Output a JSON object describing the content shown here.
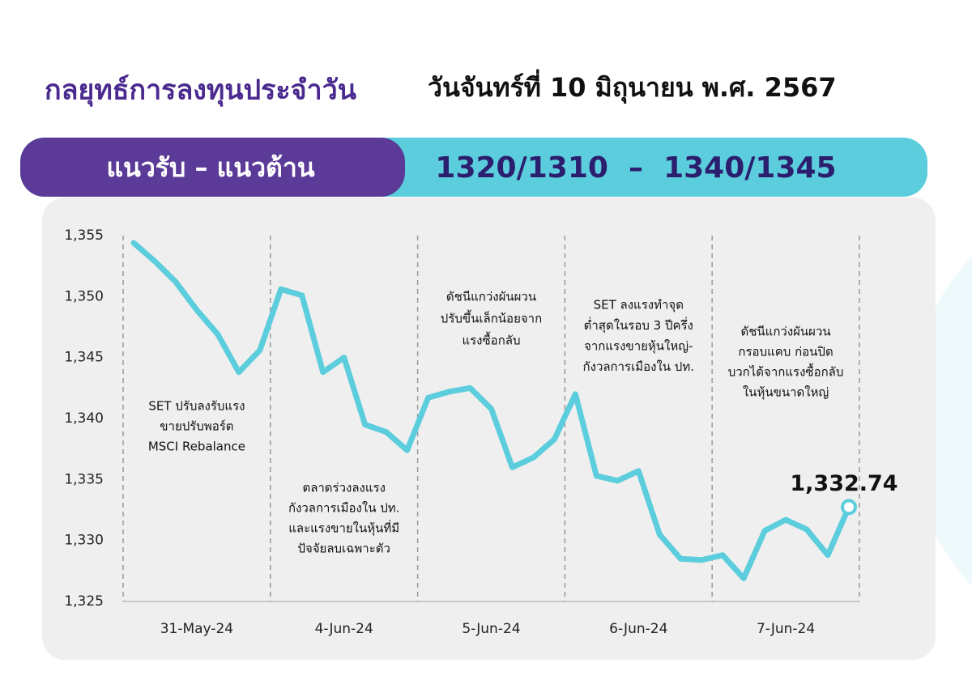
{
  "header": {
    "title": "กลยุทธ์การลงทุนประจำวัน",
    "date": "วันจันทร์ที่ 10 มิถุนายน พ.ศ. 2567",
    "levels_label": "แนวรับ – แนวต้าน",
    "levels_value": "1320/1310  –  1340/1345"
  },
  "chart_data": {
    "type": "line",
    "categories": [
      null,
      null,
      null,
      "31-May-24",
      null,
      null,
      null,
      null,
      null,
      null,
      "4-Jun-24",
      null,
      null,
      null,
      null,
      null,
      null,
      "5-Jun-24",
      null,
      null,
      null,
      null,
      null,
      null,
      "6-Jun-24",
      null,
      null,
      null,
      null,
      null,
      null,
      "7-Jun-24",
      null,
      null,
      null
    ],
    "series": [
      {
        "color": "#5bcddc",
        "values": [
          1354.4,
          1352.9,
          1351.2,
          1348.9,
          1346.9,
          1343.8,
          1345.6,
          1350.6,
          1350.1,
          1343.8,
          1345.0,
          1339.5,
          1338.9,
          1337.4,
          1341.7,
          1342.2,
          1342.5,
          1340.8,
          1336.0,
          1336.8,
          1338.3,
          1342.0,
          1335.3,
          1334.9,
          1335.7,
          1330.5,
          1328.5,
          1328.4,
          1328.8,
          1326.9,
          1330.8,
          1331.7,
          1330.9,
          1328.8,
          1332.74
        ],
        "value_labels": [
          null,
          null,
          null,
          null,
          null,
          null,
          null,
          null,
          null,
          null,
          null,
          null,
          null,
          null,
          null,
          null,
          null,
          null,
          null,
          null,
          null,
          null,
          null,
          null,
          null,
          null,
          null,
          null,
          null,
          null,
          null,
          null,
          null,
          null,
          "1,332.74"
        ]
      }
    ],
    "ylim": [
      1325,
      1355
    ],
    "yticks": [
      {
        "value": 1325,
        "label": "1,325"
      },
      {
        "value": 1330,
        "label": "1,330"
      },
      {
        "value": 1335,
        "label": "1,335"
      },
      {
        "value": 1340,
        "label": "1,340"
      },
      {
        "value": 1345,
        "label": "1,345"
      },
      {
        "value": 1350,
        "label": "1,350"
      },
      {
        "value": 1355,
        "label": "1,355"
      }
    ],
    "annotations": [
      {
        "lines": [
          "SET ปรับลงรับแรง",
          "ขายปรับพอร์ต",
          "MSCI Rebalance"
        ]
      },
      {
        "lines": [
          "ตลาดร่วงลงแรง",
          "กังวลการเมืองใน ปท.",
          "และแรงขายในหุ้นที่มี",
          "ปัจจัยลบเฉพาะตัว"
        ]
      },
      {
        "lines": [
          "ดัชนีแกว่งผันผวน",
          "ปรับขึ้นเล็กน้อยจาก",
          "แรงซื้อกลับ"
        ]
      },
      {
        "lines": [
          "SET ลงแรงทำจุด",
          "ต่ำสุดในรอบ 3 ปีครึ่ง",
          "จากแรงขายหุ้นใหญ่-",
          "กังวลการเมืองใน ปท."
        ]
      },
      {
        "lines": [
          "ดัชนีแกว่งผันผวน",
          "กรอบแคบ ก่อนปิด",
          "บวกได้จากแรงซื้อกลับ",
          "ในหุ้นขนาดใหญ่"
        ]
      }
    ]
  }
}
